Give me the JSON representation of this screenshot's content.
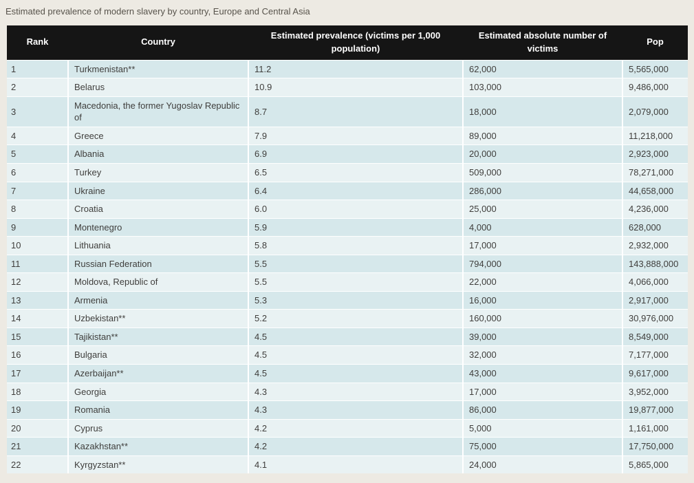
{
  "page": {
    "title": "Estimated prevalence of modern slavery by country, Europe and Central Asia"
  },
  "colors": {
    "page_background": "#edeae3",
    "header_background": "#151515",
    "header_text": "#ffffff",
    "row_odd": "#d6e8eb",
    "row_even": "#e9f2f3",
    "body_text": "#3f3e3c"
  },
  "chart_data": {
    "type": "table",
    "title": "Estimated prevalence of modern slavery by country, Europe and Central Asia",
    "columns": [
      "Rank",
      "Country",
      "Estimated prevalence (victims per 1,000 population)",
      "Estimated absolute number of victims",
      "Pop"
    ],
    "rows": [
      [
        "1",
        "Turkmenistan**",
        "11.2",
        "62,000",
        "5,565,000"
      ],
      [
        "2",
        "Belarus",
        "10.9",
        "103,000",
        "9,486,000"
      ],
      [
        "3",
        "Macedonia, the former Yugoslav Republic of",
        "8.7",
        "18,000",
        "2,079,000"
      ],
      [
        "4",
        "Greece",
        "7.9",
        "89,000",
        "11,218,000"
      ],
      [
        "5",
        "Albania",
        "6.9",
        "20,000",
        "2,923,000"
      ],
      [
        "6",
        "Turkey",
        "6.5",
        "509,000",
        "78,271,000"
      ],
      [
        "7",
        "Ukraine",
        "6.4",
        "286,000",
        "44,658,000"
      ],
      [
        "8",
        "Croatia",
        "6.0",
        "25,000",
        "4,236,000"
      ],
      [
        "9",
        "Montenegro",
        "5.9",
        "4,000",
        "628,000"
      ],
      [
        "10",
        "Lithuania",
        "5.8",
        "17,000",
        "2,932,000"
      ],
      [
        "11",
        "Russian Federation",
        "5.5",
        "794,000",
        "143,888,000"
      ],
      [
        "12",
        "Moldova, Republic of",
        "5.5",
        "22,000",
        "4,066,000"
      ],
      [
        "13",
        "Armenia",
        "5.3",
        "16,000",
        "2,917,000"
      ],
      [
        "14",
        "Uzbekistan**",
        "5.2",
        "160,000",
        "30,976,000"
      ],
      [
        "15",
        "Tajikistan**",
        "4.5",
        "39,000",
        "8,549,000"
      ],
      [
        "16",
        "Bulgaria",
        "4.5",
        "32,000",
        "7,177,000"
      ],
      [
        "17",
        "Azerbaijan**",
        "4.5",
        "43,000",
        "9,617,000"
      ],
      [
        "18",
        "Georgia",
        "4.3",
        "17,000",
        "3,952,000"
      ],
      [
        "19",
        "Romania",
        "4.3",
        "86,000",
        "19,877,000"
      ],
      [
        "20",
        "Cyprus",
        "4.2",
        "5,000",
        "1,161,000"
      ],
      [
        "21",
        "Kazakhstan**",
        "4.2",
        "75,000",
        "17,750,000"
      ],
      [
        "22",
        "Kyrgyzstan**",
        "4.1",
        "24,000",
        "5,865,000"
      ]
    ]
  }
}
